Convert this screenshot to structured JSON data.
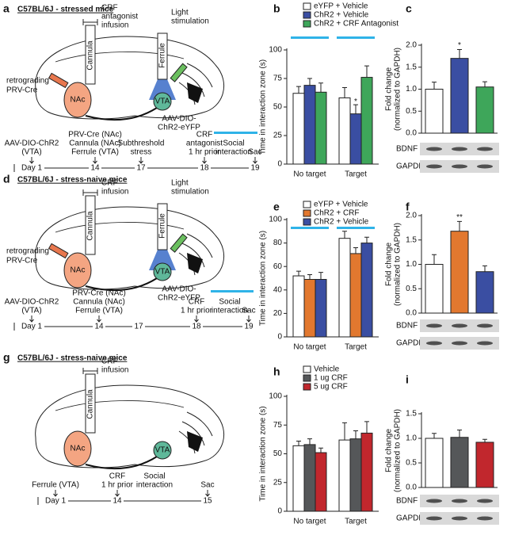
{
  "panels": {
    "a": {
      "letter": "a",
      "title": "C57BL/6J - stressed mice",
      "infusion": [
        "CRF",
        "antagonist",
        "infusion"
      ],
      "light": [
        "Light",
        "stimulation"
      ],
      "cannula": "Cannula",
      "ferrule": "Ferrule",
      "virus": [
        "retrograding",
        "PRV-Cre"
      ],
      "nac": "NAc",
      "vta": "VTA",
      "aav": [
        "AAV-DIO-",
        "ChR2-eYFP"
      ],
      "timeline": {
        "events": [
          [
            "AAV-DIO-ChR2",
            "(VTA)"
          ],
          [
            "PRV-Cre (NAc)",
            "Cannula (NAc)",
            "Ferrule (VTA)"
          ],
          [
            "Subthreshold",
            "stress"
          ],
          [
            "CRF",
            "antagonist",
            "1 hr prior"
          ],
          [
            "Social",
            "interaction"
          ],
          [
            "Sac"
          ]
        ],
        "days": [
          "Day 1",
          "14",
          "17",
          "18",
          "19"
        ]
      }
    },
    "d": {
      "letter": "d",
      "title": "C57BL/6J - stress-naive mice",
      "infusion": [
        "CRF",
        "infusion"
      ],
      "light": [
        "Light",
        "stimulation"
      ],
      "cannula": "Cannula",
      "ferrule": "Ferrule",
      "virus": [
        "retrograding",
        "PRV-Cre"
      ],
      "nac": "NAc",
      "vta": "VTA",
      "aav": [
        "AAV-DIO-",
        "ChR2-eYFP"
      ],
      "timeline": {
        "events": [
          [
            "AAV-DIO-ChR2",
            "(VTA)"
          ],
          [
            "PRV-Cre (NAc)",
            "Cannula (NAc)",
            "Ferrule (VTA)"
          ],
          [
            "CRF",
            "1 hr prior"
          ],
          [
            "Social",
            "interaction"
          ],
          [
            "Sac"
          ]
        ],
        "days": [
          "Day 1",
          "14",
          "17",
          "18",
          "19"
        ]
      }
    },
    "g": {
      "letter": "g",
      "title": "C57BL/6J - stress-naive mice",
      "infusion": [
        "CRF",
        "infusion"
      ],
      "cannula": "Cannula",
      "nac": "NAc",
      "vta": "VTA",
      "timeline": {
        "events": [
          [
            "Ferrule (VTA)"
          ],
          [
            "CRF",
            "1 hr prior"
          ],
          [
            "Social",
            "interaction"
          ],
          [
            "Sac"
          ]
        ],
        "days": [
          "Day 1",
          "14",
          "15"
        ]
      }
    }
  },
  "chart_data": [
    {
      "panel": "b",
      "type": "bar",
      "ylabel": "Time in interaction zone (s)",
      "categories": [
        "No target",
        "Target"
      ],
      "series": [
        {
          "name": "eYFP + Vehicle",
          "color": "#ffffff",
          "values": [
            62,
            58
          ],
          "errors": [
            6,
            9
          ]
        },
        {
          "name": "ChR2 + Vehicle",
          "color": "#3a4ea2",
          "values": [
            69,
            44
          ],
          "errors": [
            6,
            8
          ]
        },
        {
          "name": "ChR2 + CRF Antagonist",
          "color": "#3ea65a",
          "values": [
            63,
            76
          ],
          "errors": [
            8,
            10
          ]
        }
      ],
      "ylim": [
        0,
        100
      ],
      "yticks": [
        0,
        25,
        50,
        75,
        100
      ],
      "annotation": "*"
    },
    {
      "panel": "c",
      "type": "bar",
      "ylabel": [
        "Fold change",
        "(normalized to GAPDH)"
      ],
      "values": [
        1.0,
        1.7,
        1.05
      ],
      "errors": [
        0.16,
        0.2,
        0.12
      ],
      "colors": [
        "#ffffff",
        "#3a4ea2",
        "#3ea65a"
      ],
      "ylim": [
        0,
        2
      ],
      "yticks": [
        {
          "value": 0,
          "label": "0.0"
        },
        0.5,
        {
          "value": 1,
          "label": "1.0"
        },
        1.5,
        {
          "value": 2,
          "label": "2.0"
        }
      ],
      "annotation": "*",
      "blots": [
        "BDNF",
        "GAPDH"
      ]
    },
    {
      "panel": "e",
      "type": "bar",
      "ylabel": "Time in interaction zone (s)",
      "categories": [
        "No target",
        "Target"
      ],
      "series": [
        {
          "name": "eYFP + Vehicle",
          "color": "#ffffff",
          "values": [
            52,
            84
          ],
          "errors": [
            4,
            6
          ]
        },
        {
          "name": "ChR2 + CRF",
          "color": "#e2782f",
          "values": [
            49,
            71
          ],
          "errors": [
            4,
            5
          ]
        },
        {
          "name": "ChR2 + Vehicle",
          "color": "#3a4ea2",
          "values": [
            49,
            80
          ],
          "errors": [
            6,
            5
          ]
        }
      ],
      "ylim": [
        0,
        100
      ],
      "yticks": [
        0,
        20,
        40,
        60,
        80,
        100
      ]
    },
    {
      "panel": "f",
      "type": "bar",
      "ylabel": [
        "Fold change",
        "(normalized to GAPDH)"
      ],
      "values": [
        1.0,
        1.68,
        0.85
      ],
      "errors": [
        0.2,
        0.2,
        0.12
      ],
      "colors": [
        "#ffffff",
        "#e2782f",
        "#3a4ea2"
      ],
      "ylim": [
        0,
        2
      ],
      "yticks": [
        {
          "value": 0,
          "label": "0.0"
        },
        0.5,
        {
          "value": 1,
          "label": "1.0"
        },
        1.5,
        {
          "value": 2,
          "label": "2.0"
        }
      ],
      "annotation": "**",
      "blots": [
        "BDNF",
        "GAPDH"
      ]
    },
    {
      "panel": "h",
      "type": "bar",
      "ylabel": "Time in interaction zone (s)",
      "categories": [
        "No target",
        "Target"
      ],
      "series": [
        {
          "name": "Vehicle",
          "color": "#ffffff",
          "values": [
            57,
            62
          ],
          "errors": [
            4,
            15
          ]
        },
        {
          "name": "1 ug CRF",
          "color": "#555759",
          "values": [
            58,
            63
          ],
          "errors": [
            5,
            7
          ]
        },
        {
          "name": "5 ug CRF",
          "color": "#c1272d",
          "values": [
            51,
            68
          ],
          "errors": [
            4,
            10
          ]
        }
      ],
      "ylim": [
        0,
        100
      ],
      "yticks": [
        0,
        25,
        50,
        75,
        100
      ]
    },
    {
      "panel": "i",
      "type": "bar",
      "ylabel": [
        "Fold change",
        "(normalized to GAPDH)"
      ],
      "values": [
        1.0,
        1.02,
        0.92
      ],
      "errors": [
        0.1,
        0.15,
        0.06
      ],
      "colors": [
        "#ffffff",
        "#555759",
        "#c1272d"
      ],
      "ylim": [
        0,
        1.5
      ],
      "yticks": [
        {
          "value": 0,
          "label": "0.0"
        },
        0.5,
        {
          "value": 1,
          "label": "1.0"
        },
        1.5
      ],
      "blots": [
        "BDNF",
        "GAPDH"
      ]
    }
  ]
}
